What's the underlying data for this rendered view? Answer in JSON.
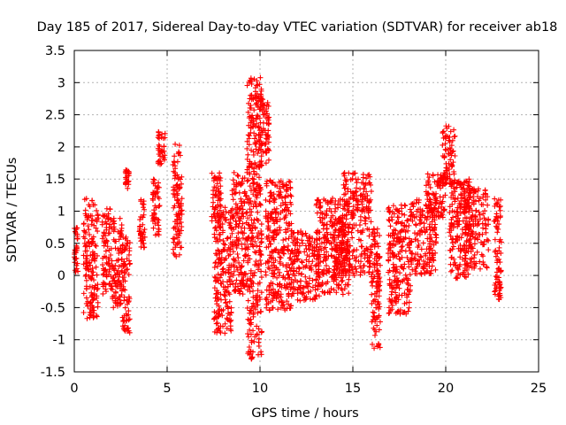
{
  "chart_data": {
    "type": "scatter",
    "title": "Day 185 of 2017, Sidereal Day-to-day VTEC variation (SDTVAR) for receiver ab18",
    "xlabel": "GPS time / hours",
    "ylabel": "SDTVAR / TECUs",
    "xlim": [
      0,
      25
    ],
    "ylim": [
      -1.5,
      3.5
    ],
    "xticks": [
      0,
      5,
      10,
      15,
      20,
      25
    ],
    "yticks": [
      -1.5,
      -1,
      -0.5,
      0,
      0.5,
      1,
      1.5,
      2,
      2.5,
      3,
      3.5
    ],
    "xtick_labels": [
      "0",
      "5",
      "10",
      "15",
      "20",
      "25"
    ],
    "ytick_labels": [
      "-1.5",
      "-1",
      "-0.5",
      "0",
      "0.5",
      "1",
      "1.5",
      "2",
      "2.5",
      "3",
      "3.5"
    ],
    "grid": true,
    "marker": "+",
    "marker_color": "#ff0000",
    "series": [
      {
        "name": "SDTVAR",
        "clusters": [
          {
            "x": [
              0.0,
              0.2
            ],
            "y": [
              0.0,
              0.75
            ]
          },
          {
            "x": [
              0.5,
              1.3
            ],
            "y": [
              -0.7,
              1.2
            ]
          },
          {
            "x": [
              1.5,
              2.0
            ],
            "y": [
              -0.3,
              1.05
            ]
          },
          {
            "x": [
              2.0,
              2.6
            ],
            "y": [
              -0.5,
              0.9
            ]
          },
          {
            "x": [
              2.6,
              3.0
            ],
            "y": [
              -0.9,
              0.6
            ]
          },
          {
            "x": [
              2.75,
              2.95
            ],
            "y": [
              1.35,
              1.65
            ]
          },
          {
            "x": [
              3.5,
              3.8
            ],
            "y": [
              0.4,
              1.2
            ]
          },
          {
            "x": [
              4.2,
              4.6
            ],
            "y": [
              0.6,
              1.5
            ]
          },
          {
            "x": [
              4.5,
              4.9
            ],
            "y": [
              1.7,
              2.25
            ]
          },
          {
            "x": [
              5.3,
              5.8
            ],
            "y": [
              0.25,
              2.05
            ]
          },
          {
            "x": [
              7.4,
              7.9
            ],
            "y": [
              0.8,
              1.6
            ]
          },
          {
            "x": [
              7.5,
              8.5
            ],
            "y": [
              -0.9,
              1.1
            ]
          },
          {
            "x": [
              8.5,
              9.3
            ],
            "y": [
              -0.3,
              1.6
            ]
          },
          {
            "x": [
              9.3,
              10.1
            ],
            "y": [
              -1.3,
              3.1
            ]
          },
          {
            "x": [
              10.0,
              10.5
            ],
            "y": [
              1.7,
              2.8
            ]
          },
          {
            "x": [
              10.3,
              11.7
            ],
            "y": [
              -0.55,
              1.5
            ]
          },
          {
            "x": [
              11.5,
              13.2
            ],
            "y": [
              -0.4,
              0.7
            ]
          },
          {
            "x": [
              13.0,
              14.8
            ],
            "y": [
              -0.3,
              1.2
            ]
          },
          {
            "x": [
              14.5,
              16.0
            ],
            "y": [
              0.9,
              1.6
            ]
          },
          {
            "x": [
              14.0,
              16.0
            ],
            "y": [
              0.0,
              0.9
            ]
          },
          {
            "x": [
              16.0,
              16.5
            ],
            "y": [
              -1.15,
              0.8
            ]
          },
          {
            "x": [
              16.9,
              18.1
            ],
            "y": [
              -0.6,
              1.1
            ]
          },
          {
            "x": [
              18.1,
              19.5
            ],
            "y": [
              0.0,
              1.2
            ]
          },
          {
            "x": [
              18.9,
              20.0
            ],
            "y": [
              0.9,
              1.6
            ]
          },
          {
            "x": [
              19.8,
              20.5
            ],
            "y": [
              1.4,
              2.35
            ]
          },
          {
            "x": [
              20.2,
              21.3
            ],
            "y": [
              -0.05,
              1.5
            ]
          },
          {
            "x": [
              21.0,
              22.3
            ],
            "y": [
              0.1,
              1.35
            ]
          },
          {
            "x": [
              22.6,
              23.0
            ],
            "y": [
              -0.4,
              1.2
            ]
          }
        ]
      }
    ]
  }
}
